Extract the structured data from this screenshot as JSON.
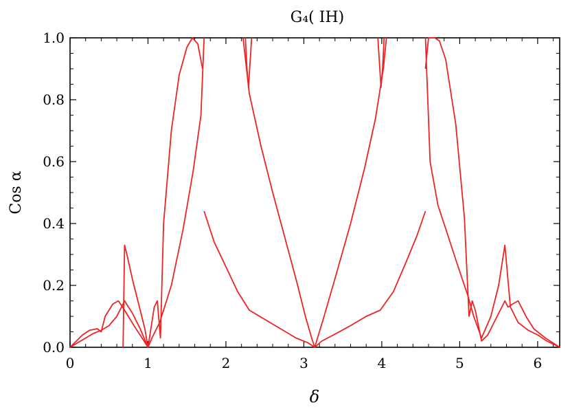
{
  "chart_data": {
    "type": "line",
    "title": "G₄( IH)",
    "xlabel": "δ",
    "ylabel": "Cos α",
    "xlim": [
      0,
      6.283
    ],
    "ylim": [
      0,
      1.0
    ],
    "x_ticks": [
      "0",
      "1",
      "2",
      "3",
      "4",
      "5",
      "6"
    ],
    "y_ticks": [
      "0.0",
      "0.2",
      "0.4",
      "0.6",
      "0.8",
      "1.0"
    ],
    "grid": false,
    "color": "#ee2222",
    "series": [
      {
        "x": [
          0.0,
          0.1,
          0.2,
          0.3,
          0.4,
          0.5,
          0.6,
          0.7,
          0.8,
          0.9,
          1.0,
          1.08,
          1.12,
          1.16,
          1.2,
          1.3,
          1.4,
          1.5,
          1.57,
          1.64,
          1.7
        ],
        "y": [
          0.0,
          0.015,
          0.03,
          0.045,
          0.055,
          0.07,
          0.1,
          0.15,
          0.11,
          0.06,
          0.0,
          0.13,
          0.15,
          0.03,
          0.4,
          0.7,
          0.88,
          0.97,
          1.0,
          0.98,
          0.9
        ]
      },
      {
        "x": [
          0.0,
          0.08,
          0.16,
          0.25,
          0.35,
          0.4,
          0.45,
          0.55,
          0.62,
          0.7,
          0.82,
          0.95,
          1.0,
          1.05,
          1.15,
          1.3,
          1.45,
          1.58,
          1.68,
          1.72
        ],
        "y": [
          0.0,
          0.02,
          0.04,
          0.055,
          0.06,
          0.05,
          0.1,
          0.14,
          0.15,
          0.12,
          0.07,
          0.02,
          0.0,
          0.03,
          0.08,
          0.2,
          0.38,
          0.57,
          0.75,
          1.0
        ]
      },
      {
        "x": [
          0.68,
          0.7,
          0.73,
          0.8,
          0.88,
          0.96,
          1.0
        ],
        "y": [
          0.0,
          0.33,
          0.3,
          0.22,
          0.14,
          0.06,
          0.0
        ]
      },
      {
        "x": [
          1.72,
          1.85,
          2.0,
          2.15,
          2.3,
          2.5,
          2.7,
          2.9,
          3.05,
          3.14
        ],
        "y": [
          0.44,
          0.34,
          0.26,
          0.18,
          0.12,
          0.09,
          0.06,
          0.03,
          0.015,
          0.0
        ]
      },
      {
        "x": [
          2.22,
          2.3,
          2.45,
          2.6,
          2.75,
          2.9,
          3.02,
          3.1,
          3.14
        ],
        "y": [
          1.0,
          0.82,
          0.65,
          0.5,
          0.36,
          0.22,
          0.1,
          0.03,
          0.0
        ]
      },
      {
        "x": [
          2.25,
          2.27,
          2.29,
          2.31,
          2.33
        ],
        "y": [
          1.0,
          0.9,
          0.84,
          0.92,
          1.0
        ]
      },
      {
        "x": [
          3.14,
          3.23,
          3.38,
          3.6,
          3.8,
          3.98,
          4.15,
          4.32,
          4.45,
          4.56
        ],
        "y": [
          0.0,
          0.02,
          0.04,
          0.07,
          0.1,
          0.12,
          0.18,
          0.28,
          0.36,
          0.44
        ]
      },
      {
        "x": [
          3.14,
          3.26,
          3.42,
          3.6,
          3.78,
          3.92,
          4.02,
          4.06
        ],
        "y": [
          0.0,
          0.1,
          0.24,
          0.4,
          0.58,
          0.74,
          0.9,
          1.0
        ]
      },
      {
        "x": [
          3.95,
          3.97,
          3.99,
          4.01,
          4.03
        ],
        "y": [
          1.0,
          0.92,
          0.84,
          0.9,
          1.0
        ]
      },
      {
        "x": [
          4.56,
          4.6,
          4.68,
          4.74,
          4.82,
          4.95,
          5.06,
          5.12,
          5.16,
          5.2,
          5.28,
          5.36,
          5.46,
          5.58,
          5.62,
          5.68,
          5.75,
          5.85,
          5.95,
          6.1,
          6.283
        ],
        "y": [
          0.9,
          1.0,
          1.0,
          0.99,
          0.93,
          0.72,
          0.42,
          0.1,
          0.15,
          0.12,
          0.02,
          0.04,
          0.09,
          0.15,
          0.13,
          0.14,
          0.15,
          0.1,
          0.06,
          0.03,
          0.0
        ]
      },
      {
        "x": [
          4.56,
          4.62,
          4.72,
          4.85,
          4.98,
          5.1,
          5.18,
          5.28,
          5.4,
          5.5,
          5.58,
          5.65,
          5.75,
          5.88,
          6.0,
          6.12,
          6.283
        ],
        "y": [
          1.0,
          0.6,
          0.46,
          0.36,
          0.26,
          0.17,
          0.1,
          0.03,
          0.1,
          0.2,
          0.33,
          0.13,
          0.08,
          0.055,
          0.04,
          0.02,
          0.0
        ]
      }
    ]
  }
}
